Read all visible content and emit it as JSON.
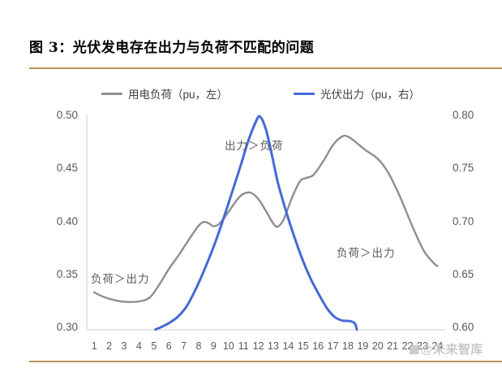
{
  "figure": {
    "title": "图 3：光伏发电存在出力与负荷不匹配的问题"
  },
  "colors": {
    "accent_gold": "#b5975a",
    "load_line": "#8f8f8f",
    "pv_line": "#4569d6",
    "axis_line": "#d9d9d9",
    "tick_text": "#595959",
    "watermark": "#c6c6c6"
  },
  "legend": {
    "items": [
      {
        "label": "用电负荷（pu，左）",
        "color": "#8f8f8f"
      },
      {
        "label": "光伏出力（pu，右）",
        "color": "#4569d6"
      }
    ]
  },
  "annotations": [
    {
      "text": "出力＞负荷"
    },
    {
      "text": "负荷＞出力"
    },
    {
      "text": "负荷＞出力"
    }
  ],
  "watermark": {
    "icon": "▦",
    "text": "@未来智库"
  },
  "chart_data": {
    "type": "line",
    "title": "光伏发电存在出力与负荷不匹配的问题",
    "categories": [
      1,
      2,
      3,
      4,
      5,
      6,
      7,
      8,
      9,
      10,
      11,
      12,
      13,
      14,
      15,
      16,
      17,
      18,
      19,
      20,
      21,
      22,
      23,
      24
    ],
    "xlabel": "",
    "left_axis": {
      "ticks": [
        "0.50",
        "0.45",
        "0.40",
        "0.35",
        "0.30"
      ],
      "range": [
        0.3,
        0.5
      ],
      "unit": "pu"
    },
    "right_axis": {
      "ticks": [
        "0.80",
        "0.75",
        "0.70",
        "0.65",
        "0.60"
      ],
      "range": [
        0.6,
        0.8
      ],
      "unit": "pu"
    },
    "grid": "off",
    "legend_position": "top",
    "series": [
      {
        "name": "用电负荷（pu，左）",
        "axis": "left",
        "color": "#8f8f8f",
        "values": [
          0.333,
          0.327,
          0.324,
          0.325,
          0.335,
          0.355,
          0.379,
          0.397,
          0.396,
          0.409,
          0.426,
          0.421,
          0.397,
          0.42,
          0.441,
          0.452,
          0.472,
          0.48,
          0.468,
          0.459,
          0.432,
          0.4,
          0.371,
          0.358
        ]
      },
      {
        "name": "光伏出力（pu，右）",
        "axis": "right",
        "color": "#4569d6",
        "values": [
          null,
          null,
          null,
          null,
          0.598,
          0.604,
          0.618,
          0.643,
          0.676,
          0.718,
          0.765,
          0.799,
          0.752,
          0.703,
          0.662,
          0.631,
          0.61,
          0.605,
          null,
          null,
          null,
          null,
          null,
          null
        ]
      }
    ],
    "render_points": {
      "load": [
        [
          1,
          0.333
        ],
        [
          1.6,
          0.329
        ],
        [
          2.4,
          0.3255
        ],
        [
          3.2,
          0.324
        ],
        [
          4,
          0.3245
        ],
        [
          4.7,
          0.328
        ],
        [
          5.3,
          0.339
        ],
        [
          6,
          0.355
        ],
        [
          6.7,
          0.369
        ],
        [
          7.4,
          0.384
        ],
        [
          8.0,
          0.396
        ],
        [
          8.35,
          0.3995
        ],
        [
          8.7,
          0.398
        ],
        [
          9.0,
          0.3955
        ],
        [
          9.4,
          0.398
        ],
        [
          10.0,
          0.409
        ],
        [
          10.6,
          0.421
        ],
        [
          11.0,
          0.426
        ],
        [
          11.5,
          0.427
        ],
        [
          12.0,
          0.421
        ],
        [
          12.5,
          0.41
        ],
        [
          13.0,
          0.398
        ],
        [
          13.3,
          0.395
        ],
        [
          13.7,
          0.402
        ],
        [
          14.3,
          0.424
        ],
        [
          14.8,
          0.438
        ],
        [
          15.2,
          0.441
        ],
        [
          15.7,
          0.444
        ],
        [
          16.4,
          0.458
        ],
        [
          17.0,
          0.472
        ],
        [
          17.6,
          0.48
        ],
        [
          18.0,
          0.48
        ],
        [
          18.5,
          0.475
        ],
        [
          19.2,
          0.467
        ],
        [
          20.0,
          0.459
        ],
        [
          20.7,
          0.446
        ],
        [
          21.5,
          0.423
        ],
        [
          22.3,
          0.396
        ],
        [
          23.1,
          0.372
        ],
        [
          23.8,
          0.36
        ],
        [
          24,
          0.358
        ]
      ],
      "pv": [
        [
          5.1,
          0.598
        ],
        [
          5.6,
          0.601
        ],
        [
          6.0,
          0.604
        ],
        [
          6.6,
          0.61
        ],
        [
          7.2,
          0.62
        ],
        [
          7.8,
          0.636
        ],
        [
          8.4,
          0.655
        ],
        [
          9.0,
          0.676
        ],
        [
          9.6,
          0.7
        ],
        [
          10.2,
          0.726
        ],
        [
          10.8,
          0.752
        ],
        [
          11.3,
          0.775
        ],
        [
          11.8,
          0.793
        ],
        [
          12.1,
          0.799
        ],
        [
          12.5,
          0.787
        ],
        [
          12.9,
          0.763
        ],
        [
          13.3,
          0.737
        ],
        [
          13.8,
          0.712
        ],
        [
          14.3,
          0.69
        ],
        [
          14.9,
          0.666
        ],
        [
          15.5,
          0.646
        ],
        [
          16.1,
          0.63
        ],
        [
          16.6,
          0.618
        ],
        [
          17.1,
          0.61
        ],
        [
          17.6,
          0.6065
        ],
        [
          18.1,
          0.606
        ],
        [
          18.45,
          0.604
        ],
        [
          18.6,
          0.598
        ]
      ]
    }
  }
}
